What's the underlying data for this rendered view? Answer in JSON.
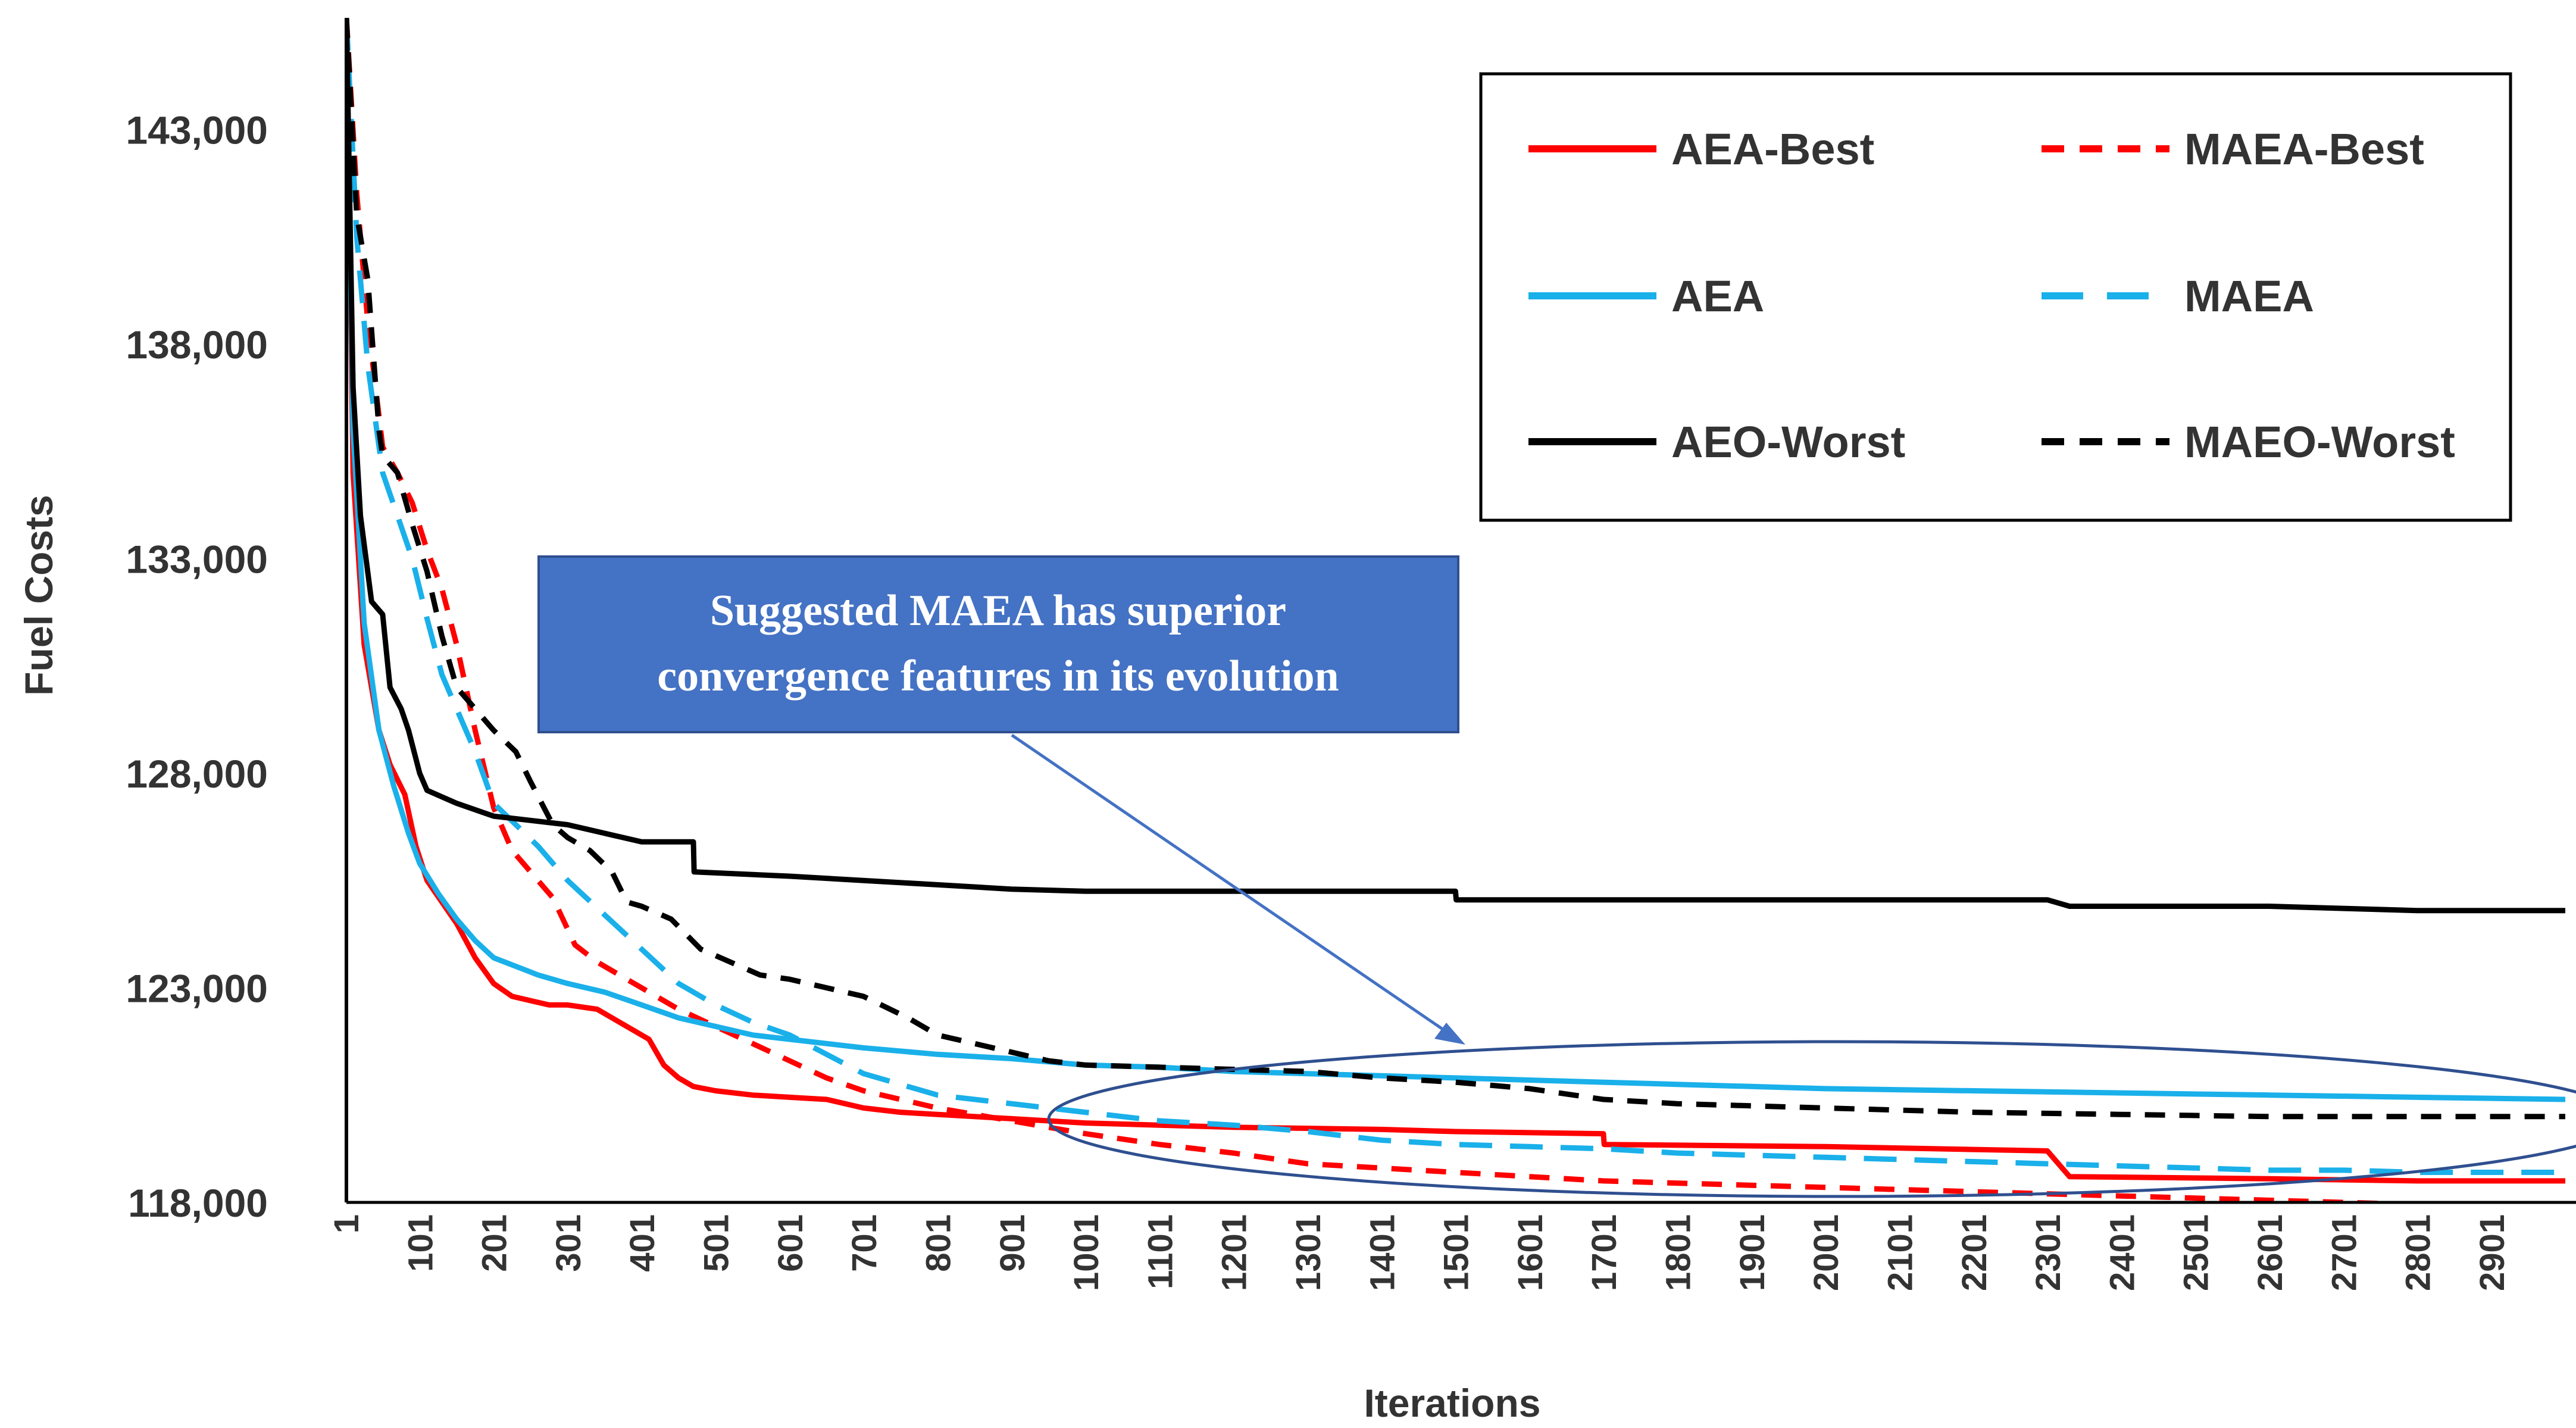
{
  "chart_data": {
    "type": "line",
    "title": "",
    "xlabel": "Iterations",
    "ylabel": "Fuel Costs",
    "ylim": [
      118000,
      145600
    ],
    "xlim": [
      1,
      3000
    ],
    "yticks": [
      "118,000",
      "123,000",
      "128,000",
      "133,000",
      "138,000",
      "143,000"
    ],
    "ytick_values": [
      118000,
      123000,
      128000,
      133000,
      138000,
      143000
    ],
    "xticks": [
      "1",
      "101",
      "201",
      "301",
      "401",
      "501",
      "601",
      "701",
      "801",
      "901",
      "1001",
      "1101",
      "1201",
      "1301",
      "1401",
      "1501",
      "1601",
      "1701",
      "1801",
      "1901",
      "2001",
      "2101",
      "2201",
      "2301",
      "2401",
      "2501",
      "2601",
      "2701",
      "2801",
      "2901"
    ],
    "legend_position": "top-right",
    "grid": false,
    "series": [
      {
        "name": "AEA-Best",
        "color": "#ff0000",
        "dash": "solid",
        "x": [
          1,
          10,
          25,
          45,
          60,
          80,
          95,
          110,
          130,
          150,
          175,
          200,
          225,
          250,
          275,
          300,
          340,
          360,
          380,
          410,
          430,
          450,
          470,
          500,
          550,
          600,
          650,
          700,
          750,
          800,
          850,
          900,
          1000,
          1100,
          1200,
          1400,
          1500,
          1700,
          1701,
          2000,
          2300,
          2330,
          2600,
          2800,
          3000
        ],
        "y": [
          145600,
          135000,
          131000,
          129000,
          128200,
          127500,
          126300,
          125500,
          125000,
          124500,
          123700,
          123100,
          122800,
          122700,
          122600,
          122600,
          122500,
          122300,
          122100,
          121800,
          121200,
          120900,
          120700,
          120600,
          120500,
          120450,
          120400,
          120200,
          120100,
          120050,
          120000,
          119950,
          119850,
          119800,
          119750,
          119700,
          119650,
          119600,
          119350,
          119300,
          119200,
          118600,
          118550,
          118500,
          118500
        ]
      },
      {
        "name": "MAEA-Best",
        "color": "#ff0000",
        "dash": "dashed",
        "x": [
          1,
          15,
          30,
          50,
          70,
          90,
          110,
          130,
          150,
          175,
          200,
          225,
          250,
          280,
          310,
          340,
          370,
          400,
          450,
          500,
          550,
          600,
          650,
          700,
          750,
          800,
          850,
          900,
          1000,
          1100,
          1200,
          1300,
          1400,
          1500,
          1600,
          1700,
          1800,
          1900,
          2000,
          2100,
          2200,
          2300,
          2400,
          2500,
          2600,
          2700,
          2800,
          2900,
          3000
        ],
        "y": [
          145600,
          141500,
          138500,
          135600,
          135000,
          134300,
          133200,
          132300,
          131000,
          129000,
          127200,
          126200,
          125700,
          125100,
          124000,
          123600,
          123300,
          123000,
          122500,
          122100,
          121700,
          121300,
          120900,
          120600,
          120400,
          120200,
          120050,
          119900,
          119600,
          119350,
          119150,
          118900,
          118800,
          118700,
          118600,
          118500,
          118450,
          118400,
          118350,
          118300,
          118250,
          118200,
          118150,
          118100,
          118050,
          118000,
          117950,
          117900,
          117900
        ]
      },
      {
        "name": "AEA",
        "color": "#1ab0ea",
        "dash": "solid",
        "x": [
          1,
          10,
          25,
          45,
          65,
          85,
          100,
          125,
          150,
          175,
          200,
          230,
          260,
          300,
          350,
          400,
          450,
          500,
          550,
          600,
          700,
          800,
          900,
          1000,
          1100,
          1200,
          1300,
          1400,
          1500,
          1600,
          1700,
          1800,
          1900,
          2000,
          2200,
          2400,
          2600,
          2800,
          3000
        ],
        "y": [
          145600,
          136000,
          131500,
          129000,
          127700,
          126600,
          125900,
          125200,
          124600,
          124100,
          123700,
          123500,
          123300,
          123100,
          122900,
          122600,
          122300,
          122100,
          121900,
          121800,
          121600,
          121450,
          121350,
          121200,
          121150,
          121050,
          121000,
          120950,
          120900,
          120850,
          120800,
          120750,
          120700,
          120650,
          120600,
          120550,
          120500,
          120450,
          120400
        ]
      },
      {
        "name": "MAEA",
        "color": "#1ab0ea",
        "dash": "dashed",
        "x": [
          1,
          15,
          30,
          50,
          70,
          90,
          110,
          130,
          150,
          175,
          200,
          230,
          260,
          300,
          350,
          400,
          450,
          500,
          550,
          600,
          700,
          800,
          900,
          1000,
          1100,
          1200,
          1300,
          1400,
          1500,
          1600,
          1700,
          1800,
          1900,
          2000,
          2100,
          2200,
          2300,
          2400,
          2500,
          2600,
          2700,
          2800,
          2900,
          3000
        ],
        "y": [
          145600,
          140500,
          137500,
          135000,
          134000,
          133000,
          131600,
          130300,
          129500,
          128500,
          127300,
          126800,
          126300,
          125500,
          124700,
          123900,
          123100,
          122600,
          122200,
          121900,
          121000,
          120500,
          120300,
          120100,
          119900,
          119800,
          119650,
          119450,
          119350,
          119300,
          119250,
          119150,
          119100,
          119050,
          119000,
          118950,
          118900,
          118850,
          118800,
          118750,
          118750,
          118700,
          118700,
          118700
        ]
      },
      {
        "name": "AEO-Worst",
        "color": "#000000",
        "dash": "solid",
        "x": [
          1,
          10,
          20,
          35,
          50,
          60,
          75,
          85,
          100,
          110,
          150,
          200,
          250,
          300,
          350,
          400,
          450,
          470,
          471,
          600,
          700,
          800,
          900,
          1000,
          1200,
          1400,
          1500,
          1501,
          1800,
          2000,
          2300,
          2330,
          2600,
          2700,
          2800,
          3000
        ],
        "y": [
          145600,
          137000,
          134000,
          132000,
          131700,
          130000,
          129500,
          129000,
          128000,
          127600,
          127300,
          127000,
          126900,
          126800,
          126600,
          126400,
          126400,
          126400,
          125700,
          125600,
          125500,
          125400,
          125300,
          125250,
          125250,
          125250,
          125250,
          125050,
          125050,
          125050,
          125050,
          124900,
          124900,
          124850,
          124800,
          124800
        ]
      },
      {
        "name": "MAEO-Worst",
        "color": "#000000",
        "dash": "dashed",
        "x": [
          1,
          15,
          30,
          45,
          50,
          70,
          90,
          110,
          130,
          150,
          175,
          200,
          230,
          250,
          280,
          300,
          330,
          360,
          380,
          400,
          440,
          480,
          520,
          560,
          600,
          650,
          700,
          760,
          800,
          850,
          900,
          950,
          1000,
          1100,
          1200,
          1300,
          1400,
          1500,
          1600,
          1700,
          1800,
          2000,
          2200,
          2400,
          2600,
          2800,
          3000
        ],
        "y": [
          145600,
          141000,
          139500,
          136000,
          135400,
          135000,
          133800,
          132700,
          131200,
          130000,
          129500,
          129000,
          128500,
          127800,
          126800,
          126500,
          126200,
          125700,
          125000,
          124900,
          124600,
          123900,
          123600,
          123300,
          123200,
          123000,
          122800,
          122300,
          121900,
          121700,
          121500,
          121300,
          121200,
          121150,
          121100,
          121050,
          120900,
          120800,
          120650,
          120400,
          120300,
          120200,
          120100,
          120050,
          120000,
          120000,
          120000
        ]
      }
    ],
    "annotation": {
      "text_lines": [
        "Suggested MAEA has superior",
        "convergence features in its evolution"
      ],
      "box_color": "#4472c4",
      "arrow_color": "#4472c4"
    }
  }
}
